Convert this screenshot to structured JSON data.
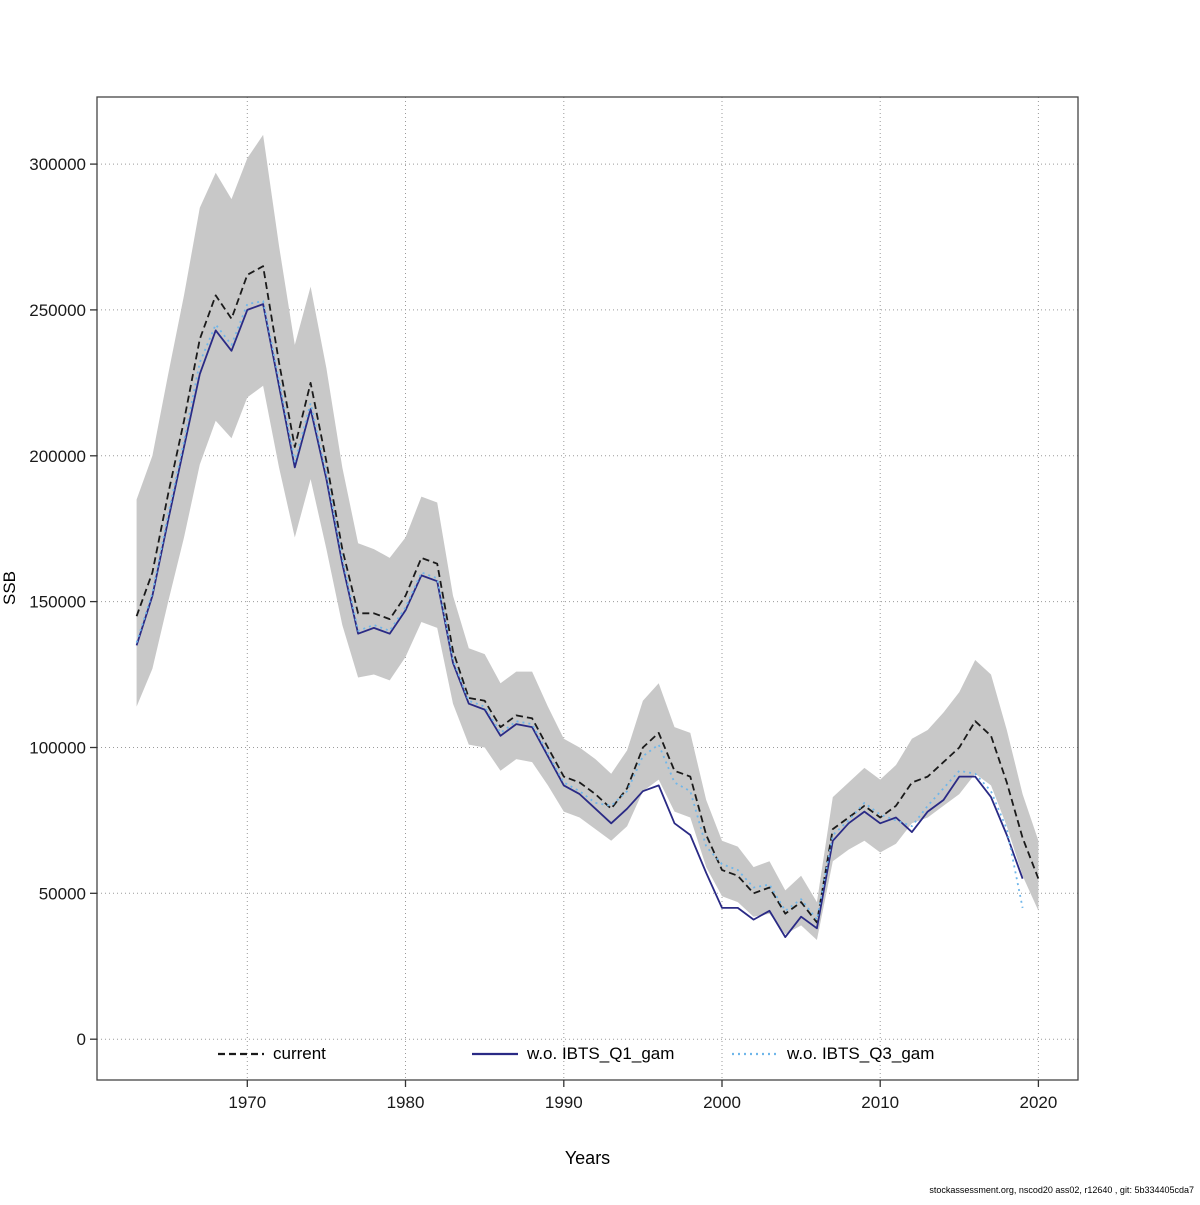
{
  "figure": {
    "background": "#ffffff"
  },
  "footer": {
    "text": "stockassessment.org, nscod20 ass02, r12640 , git: 5b334405cda7"
  },
  "chart_data": {
    "type": "line",
    "title": "",
    "xlabel": "Years",
    "ylabel": "SSB",
    "legend_position": "bottom-inside",
    "grid": "dotted",
    "x_ticks": [
      1970,
      1980,
      1990,
      2000,
      2010,
      2020
    ],
    "y_ticks": [
      0,
      50000,
      100000,
      150000,
      200000,
      250000,
      300000
    ],
    "x_range": [
      1960.5,
      2022.5
    ],
    "y_range": [
      -14000,
      323000
    ],
    "band": {
      "name": "current confidence interval",
      "color": "#c8c8c8",
      "year_start": 1963,
      "hi": [
        185000,
        200000,
        228000,
        255000,
        285000,
        297000,
        288000,
        302000,
        310000,
        272000,
        238000,
        258000,
        230000,
        196000,
        170000,
        168000,
        165000,
        172000,
        186000,
        184000,
        152000,
        134000,
        132000,
        122000,
        126000,
        126000,
        114000,
        103000,
        100000,
        96000,
        91000,
        99000,
        116000,
        122000,
        107000,
        105000,
        82000,
        68000,
        66000,
        59000,
        61000,
        51000,
        56000,
        47000,
        83000,
        88000,
        93000,
        89000,
        94000,
        103000,
        106000,
        112000,
        119000,
        130000,
        125000,
        106000,
        84000,
        68000
      ],
      "lo": [
        114000,
        127000,
        150000,
        172000,
        197000,
        212000,
        206000,
        220000,
        224000,
        196000,
        172000,
        192000,
        168000,
        142000,
        124000,
        125000,
        123000,
        131000,
        143000,
        141000,
        115000,
        101000,
        100000,
        92000,
        96000,
        95000,
        87000,
        78000,
        76000,
        72000,
        68000,
        73000,
        85000,
        89000,
        78000,
        76000,
        59000,
        49000,
        47000,
        42000,
        43000,
        36000,
        39000,
        34000,
        61000,
        65000,
        68000,
        64000,
        67000,
        74000,
        76000,
        80000,
        84000,
        91000,
        87000,
        73000,
        56000,
        44000
      ]
    },
    "series": [
      {
        "name": "current",
        "color": "#1a1a1a",
        "style": "dashed",
        "year_start": 1963,
        "values": [
          145000,
          160000,
          187000,
          212000,
          240000,
          255000,
          247000,
          262000,
          265000,
          232000,
          203000,
          225000,
          198000,
          168000,
          146000,
          146000,
          144000,
          152000,
          165000,
          163000,
          133000,
          117000,
          116000,
          107000,
          111000,
          110000,
          100000,
          90000,
          88000,
          84000,
          79000,
          86000,
          100000,
          105000,
          92000,
          90000,
          70000,
          58000,
          56000,
          50000,
          52000,
          43000,
          47000,
          40000,
          72000,
          76000,
          80000,
          76000,
          80000,
          88000,
          90000,
          95000,
          100000,
          109000,
          104000,
          88000,
          69000,
          55000
        ]
      },
      {
        "name": "w.o. IBTS_Q1_gam",
        "color": "#2a2a85",
        "style": "solid",
        "year_start": 1963,
        "values": [
          135000,
          152000,
          178000,
          203000,
          228000,
          243000,
          236000,
          250000,
          252000,
          224000,
          196000,
          216000,
          192000,
          163000,
          139000,
          141000,
          139000,
          147000,
          159000,
          157000,
          129000,
          115000,
          113000,
          104000,
          108000,
          107000,
          97000,
          87000,
          84000,
          79000,
          74000,
          79000,
          85000,
          87000,
          74000,
          70000,
          57000,
          45000,
          45000,
          41000,
          44000,
          35000,
          42000,
          38000,
          68000,
          74000,
          78000,
          74000,
          76000,
          71000,
          78000,
          82000,
          90000,
          90000,
          83000,
          70000,
          55000
        ]
      },
      {
        "name": "w.o. IBTS_Q3_gam",
        "color": "#6fb6ea",
        "style": "dotted",
        "year_start": 1963,
        "values": [
          136000,
          153000,
          180000,
          205000,
          232000,
          245000,
          238000,
          252000,
          253000,
          226000,
          198000,
          218000,
          194000,
          165000,
          140000,
          142000,
          140000,
          148000,
          160000,
          158000,
          130000,
          116000,
          114000,
          105000,
          109000,
          108000,
          98000,
          88000,
          85000,
          81000,
          80000,
          85000,
          97000,
          101000,
          88000,
          85000,
          66000,
          60000,
          58000,
          52000,
          53000,
          44000,
          48000,
          41000,
          70000,
          75000,
          81000,
          77000,
          75000,
          73000,
          80000,
          86000,
          92000,
          91000,
          85000,
          72000,
          45000
        ]
      }
    ]
  }
}
